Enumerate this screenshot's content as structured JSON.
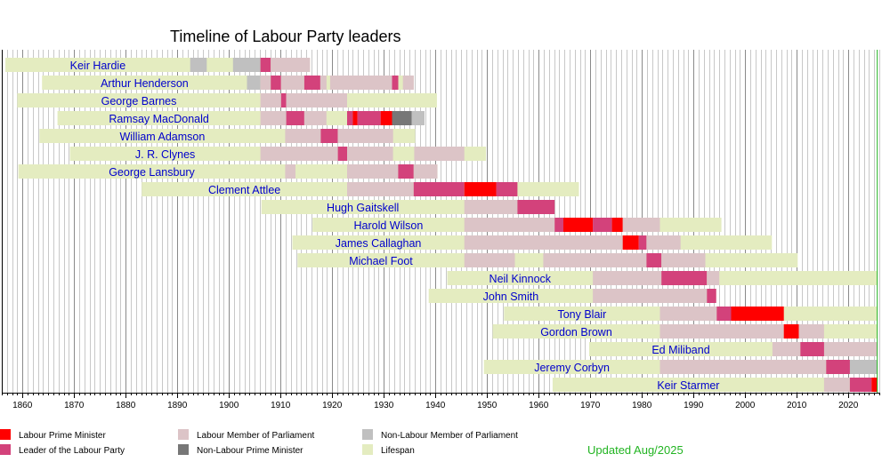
{
  "chart_data": {
    "type": "timeline",
    "title": "Timeline of Labour Party leaders",
    "xlim": [
      1856,
      2026
    ],
    "x_ticks": [
      1860,
      1870,
      1880,
      1890,
      1900,
      1910,
      1920,
      1930,
      1940,
      1950,
      1960,
      1970,
      1980,
      1990,
      2000,
      2010,
      2020
    ],
    "grid": true,
    "colors": {
      "labour_pm": "#ff0000",
      "leader": "#d3427b",
      "labour_mp": "#dcc4c7",
      "non_labour_pm": "#777777",
      "non_labour_mp": "#c0c0c0",
      "lifespan": "#e4ecc0",
      "grid": "#909090",
      "name": "#0000cc",
      "today_line": "#22b422"
    },
    "legend": [
      {
        "key": "labour_pm",
        "label": "Labour Prime Minister"
      },
      {
        "key": "leader",
        "label": "Leader of the Labour Party"
      },
      {
        "key": "labour_mp",
        "label": "Labour Member of Parliament"
      },
      {
        "key": "non_labour_pm",
        "label": "Non-Labour Prime Minister"
      },
      {
        "key": "non_labour_mp",
        "label": "Non-Labour Member of Parliament"
      },
      {
        "key": "lifespan",
        "label": "Lifespan"
      }
    ],
    "people": [
      {
        "name": "Keir Hardie",
        "segments": [
          {
            "type": "lifespan",
            "start": 1856.7,
            "end": 1915.7
          },
          {
            "type": "non_labour_mp",
            "start": 1892.5,
            "end": 1895.7
          },
          {
            "type": "non_labour_mp",
            "start": 1900.8,
            "end": 1906.1
          },
          {
            "type": "leader",
            "start": 1906.1,
            "end": 1908.1
          },
          {
            "type": "labour_mp",
            "start": 1908.1,
            "end": 1915.7
          }
        ]
      },
      {
        "name": "Arthur Henderson",
        "segments": [
          {
            "type": "lifespan",
            "start": 1863.8,
            "end": 1935.8
          },
          {
            "type": "non_labour_mp",
            "start": 1903.5,
            "end": 1906.1
          },
          {
            "type": "labour_mp",
            "start": 1906.1,
            "end": 1908.1
          },
          {
            "type": "leader",
            "start": 1908.1,
            "end": 1910.1
          },
          {
            "type": "labour_mp",
            "start": 1910.1,
            "end": 1914.6
          },
          {
            "type": "leader",
            "start": 1914.6,
            "end": 1917.7
          },
          {
            "type": "labour_mp",
            "start": 1917.7,
            "end": 1918.9
          },
          {
            "type": "labour_mp",
            "start": 1919.6,
            "end": 1931.6
          },
          {
            "type": "leader",
            "start": 1931.6,
            "end": 1932.8
          },
          {
            "type": "labour_mp",
            "start": 1933.7,
            "end": 1935.8
          }
        ]
      },
      {
        "name": "George Barnes",
        "segments": [
          {
            "type": "lifespan",
            "start": 1859.0,
            "end": 1940.3
          },
          {
            "type": "labour_mp",
            "start": 1906.1,
            "end": 1910.1
          },
          {
            "type": "leader",
            "start": 1910.1,
            "end": 1911.1
          },
          {
            "type": "labour_mp",
            "start": 1911.1,
            "end": 1922.9
          }
        ]
      },
      {
        "name": "Ramsay MacDonald",
        "segments": [
          {
            "type": "lifespan",
            "start": 1866.8,
            "end": 1937.9
          },
          {
            "type": "labour_mp",
            "start": 1906.1,
            "end": 1911.1
          },
          {
            "type": "leader",
            "start": 1911.1,
            "end": 1914.6
          },
          {
            "type": "labour_mp",
            "start": 1914.6,
            "end": 1918.9
          },
          {
            "type": "leader",
            "start": 1922.9,
            "end": 1924.0
          },
          {
            "type": "labour_pm",
            "start": 1924.0,
            "end": 1924.9
          },
          {
            "type": "leader",
            "start": 1924.9,
            "end": 1929.4
          },
          {
            "type": "labour_pm",
            "start": 1929.4,
            "end": 1931.6
          },
          {
            "type": "non_labour_pm",
            "start": 1931.6,
            "end": 1935.4
          },
          {
            "type": "non_labour_mp",
            "start": 1935.4,
            "end": 1937.9
          }
        ]
      },
      {
        "name": "William Adamson",
        "segments": [
          {
            "type": "lifespan",
            "start": 1863.3,
            "end": 1936.1
          },
          {
            "type": "labour_mp",
            "start": 1910.9,
            "end": 1917.8
          },
          {
            "type": "leader",
            "start": 1917.8,
            "end": 1921.1
          },
          {
            "type": "labour_mp",
            "start": 1921.1,
            "end": 1931.8
          }
        ]
      },
      {
        "name": "J. R. Clynes",
        "segments": [
          {
            "type": "lifespan",
            "start": 1869.2,
            "end": 1949.8
          },
          {
            "type": "labour_mp",
            "start": 1906.1,
            "end": 1921.1
          },
          {
            "type": "leader",
            "start": 1921.1,
            "end": 1922.9
          },
          {
            "type": "labour_mp",
            "start": 1922.9,
            "end": 1931.8
          },
          {
            "type": "labour_mp",
            "start": 1935.9,
            "end": 1945.6
          }
        ]
      },
      {
        "name": "George Lansbury",
        "segments": [
          {
            "type": "lifespan",
            "start": 1859.2,
            "end": 1940.4
          },
          {
            "type": "labour_mp",
            "start": 1910.9,
            "end": 1912.9
          },
          {
            "type": "labour_mp",
            "start": 1922.9,
            "end": 1932.8
          },
          {
            "type": "leader",
            "start": 1932.8,
            "end": 1935.8
          },
          {
            "type": "labour_mp",
            "start": 1935.8,
            "end": 1940.4
          }
        ]
      },
      {
        "name": "Clement Attlee",
        "segments": [
          {
            "type": "lifespan",
            "start": 1883.1,
            "end": 1967.8
          },
          {
            "type": "labour_mp",
            "start": 1922.9,
            "end": 1935.8
          },
          {
            "type": "leader",
            "start": 1935.8,
            "end": 1945.6
          },
          {
            "type": "labour_pm",
            "start": 1945.6,
            "end": 1951.8
          },
          {
            "type": "leader",
            "start": 1951.8,
            "end": 1955.9
          }
        ]
      },
      {
        "name": "Hugh Gaitskell",
        "segments": [
          {
            "type": "lifespan",
            "start": 1906.3,
            "end": 1963.1
          },
          {
            "type": "labour_mp",
            "start": 1945.6,
            "end": 1955.9
          },
          {
            "type": "leader",
            "start": 1955.9,
            "end": 1963.1
          }
        ]
      },
      {
        "name": "Harold Wilson",
        "segments": [
          {
            "type": "lifespan",
            "start": 1916.2,
            "end": 1995.4
          },
          {
            "type": "labour_mp",
            "start": 1945.6,
            "end": 1963.1
          },
          {
            "type": "leader",
            "start": 1963.1,
            "end": 1964.8
          },
          {
            "type": "labour_pm",
            "start": 1964.8,
            "end": 1970.5
          },
          {
            "type": "leader",
            "start": 1970.5,
            "end": 1974.2
          },
          {
            "type": "labour_pm",
            "start": 1974.2,
            "end": 1976.3
          },
          {
            "type": "labour_mp",
            "start": 1976.3,
            "end": 1983.5
          }
        ]
      },
      {
        "name": "James Callaghan",
        "segments": [
          {
            "type": "lifespan",
            "start": 1912.3,
            "end": 2005.2
          },
          {
            "type": "labour_mp",
            "start": 1945.6,
            "end": 1976.3
          },
          {
            "type": "labour_pm",
            "start": 1976.3,
            "end": 1979.4
          },
          {
            "type": "leader",
            "start": 1979.4,
            "end": 1980.9
          },
          {
            "type": "labour_mp",
            "start": 1980.9,
            "end": 1987.5
          }
        ]
      },
      {
        "name": "Michael Foot",
        "segments": [
          {
            "type": "lifespan",
            "start": 1913.3,
            "end": 2010.2
          },
          {
            "type": "labour_mp",
            "start": 1945.6,
            "end": 1955.4
          },
          {
            "type": "labour_mp",
            "start": 1960.9,
            "end": 1980.9
          },
          {
            "type": "leader",
            "start": 1980.9,
            "end": 1983.8
          },
          {
            "type": "labour_mp",
            "start": 1983.8,
            "end": 1992.3
          }
        ]
      },
      {
        "name": "Neil Kinnock",
        "segments": [
          {
            "type": "lifespan",
            "start": 1942.3,
            "end": 2025.6
          },
          {
            "type": "labour_mp",
            "start": 1970.5,
            "end": 1983.8
          },
          {
            "type": "leader",
            "start": 1983.8,
            "end": 1992.6
          },
          {
            "type": "labour_mp",
            "start": 1992.6,
            "end": 1995.0
          }
        ]
      },
      {
        "name": "John Smith",
        "segments": [
          {
            "type": "lifespan",
            "start": 1938.7,
            "end": 1994.4
          },
          {
            "type": "labour_mp",
            "start": 1970.5,
            "end": 1992.6
          },
          {
            "type": "leader",
            "start": 1992.6,
            "end": 1994.4
          }
        ]
      },
      {
        "name": "Tony Blair",
        "segments": [
          {
            "type": "lifespan",
            "start": 1953.3,
            "end": 2025.6
          },
          {
            "type": "labour_mp",
            "start": 1983.5,
            "end": 1994.5
          },
          {
            "type": "leader",
            "start": 1994.5,
            "end": 1997.3
          },
          {
            "type": "labour_pm",
            "start": 1997.3,
            "end": 2007.5
          }
        ]
      },
      {
        "name": "Gordon Brown",
        "segments": [
          {
            "type": "lifespan",
            "start": 1951.1,
            "end": 2025.6
          },
          {
            "type": "labour_mp",
            "start": 1983.5,
            "end": 2007.5
          },
          {
            "type": "labour_pm",
            "start": 2007.5,
            "end": 2010.4
          },
          {
            "type": "labour_mp",
            "start": 2010.4,
            "end": 2015.3
          }
        ]
      },
      {
        "name": "Ed Miliband",
        "segments": [
          {
            "type": "lifespan",
            "start": 1969.8,
            "end": 2025.6
          },
          {
            "type": "labour_mp",
            "start": 2005.3,
            "end": 2010.7
          },
          {
            "type": "leader",
            "start": 2010.7,
            "end": 2015.3
          },
          {
            "type": "labour_mp",
            "start": 2015.3,
            "end": 2025.6
          }
        ]
      },
      {
        "name": "Jeremy Corbyn",
        "segments": [
          {
            "type": "lifespan",
            "start": 1949.4,
            "end": 2025.6
          },
          {
            "type": "labour_mp",
            "start": 1983.5,
            "end": 2015.7
          },
          {
            "type": "leader",
            "start": 2015.7,
            "end": 2020.3
          },
          {
            "type": "non_labour_mp",
            "start": 2020.3,
            "end": 2025.6
          }
        ]
      },
      {
        "name": "Keir Starmer",
        "segments": [
          {
            "type": "lifespan",
            "start": 1962.7,
            "end": 2025.6
          },
          {
            "type": "labour_mp",
            "start": 2015.3,
            "end": 2020.3
          },
          {
            "type": "leader",
            "start": 2020.3,
            "end": 2024.5
          },
          {
            "type": "labour_pm",
            "start": 2024.5,
            "end": 2025.6
          }
        ]
      }
    ],
    "updated": "Updated Aug/2025",
    "today_line": 2025.6
  }
}
